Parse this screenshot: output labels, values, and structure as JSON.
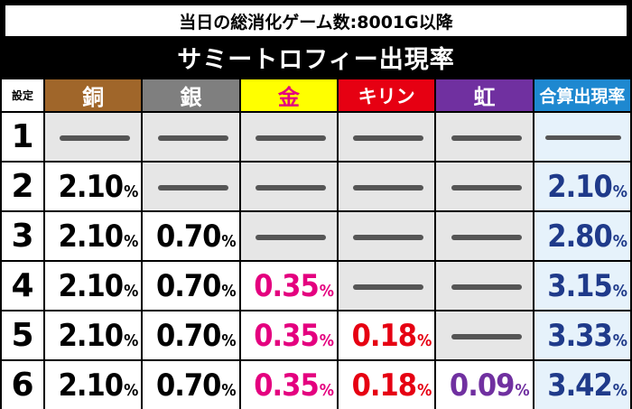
{
  "banner": "当日の総消化ゲーム数:8001G以降",
  "title": "サミートロフィー出現率",
  "headers": {
    "setting": "設定",
    "copper": "銅",
    "silver": "銀",
    "gold": "金",
    "kirin": "キリン",
    "niji": "虹",
    "total": "合算出現率"
  },
  "colors": {
    "copper": "#a0662a",
    "silver": "#7f7f7f",
    "gold": "#ffff00",
    "kirin": "#e60012",
    "niji": "#7030a0",
    "total": "#1e88d0",
    "gold_text": "#e4007f",
    "total_text": "#1f3a8a"
  },
  "rows": [
    {
      "setting": "1",
      "copper": null,
      "silver": null,
      "gold": null,
      "kirin": null,
      "niji": null,
      "total": null
    },
    {
      "setting": "2",
      "copper": "2.10",
      "silver": null,
      "gold": null,
      "kirin": null,
      "niji": null,
      "total": "2.10"
    },
    {
      "setting": "3",
      "copper": "2.10",
      "silver": "0.70",
      "gold": null,
      "kirin": null,
      "niji": null,
      "total": "2.80"
    },
    {
      "setting": "4",
      "copper": "2.10",
      "silver": "0.70",
      "gold": "0.35",
      "kirin": null,
      "niji": null,
      "total": "3.15"
    },
    {
      "setting": "5",
      "copper": "2.10",
      "silver": "0.70",
      "gold": "0.35",
      "kirin": "0.18",
      "niji": null,
      "total": "3.33"
    },
    {
      "setting": "6",
      "copper": "2.10",
      "silver": "0.70",
      "gold": "0.35",
      "kirin": "0.18",
      "niji": "0.09",
      "total": "3.42"
    }
  ],
  "percent_sign": "%"
}
